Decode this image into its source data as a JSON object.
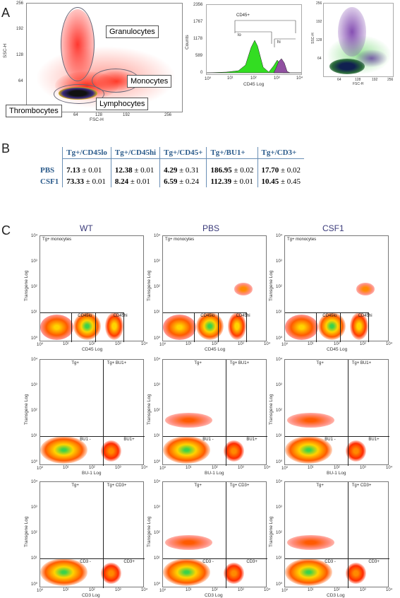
{
  "panels": {
    "a": "A",
    "b": "B",
    "c": "C"
  },
  "scatter_a": {
    "yticks": [
      "256",
      "192",
      "128",
      "64"
    ],
    "xticks": [
      "64",
      "128",
      "192",
      "256"
    ],
    "ylabel": "SSC-H",
    "xlabel": "FSC-H",
    "callouts": {
      "granulocytes": "Granulocytes",
      "monocytes": "Monocytes",
      "lymphocytes": "Lymphocytes",
      "thrombocytes": "Thrombocytes"
    }
  },
  "histogram": {
    "yticks": [
      "2356",
      "1767",
      "1178",
      "589",
      "0"
    ],
    "xticks": [
      "10⁰",
      "10¹",
      "10²",
      "10³",
      "10⁴"
    ],
    "ylabel": "Counts",
    "xlabel": "CD45 Log",
    "gate_all": "CD45+",
    "gate_lo": "lo",
    "gate_hi": "hi"
  },
  "scatter_small": {
    "yticks": [
      "256",
      "192",
      "128",
      "64"
    ],
    "xticks": [
      "64",
      "128",
      "192",
      "256"
    ],
    "ylabel": "SSC-H",
    "xlabel": "FSC-H"
  },
  "table": {
    "headers": [
      "Tg+/CD45lo",
      "Tg+/CD45hi",
      "Tg+/CD45+",
      "Tg+/BU1+",
      "Tg+/CD3+"
    ],
    "rows": [
      {
        "label": "PBS",
        "cells": [
          [
            "7.13",
            "± 0.01"
          ],
          [
            "12.38",
            "± 0.01"
          ],
          [
            "4.29",
            "± 0.31"
          ],
          [
            "186.95",
            "± 0.02"
          ],
          [
            "17.70",
            "± 0.02"
          ]
        ]
      },
      {
        "label": "CSF1",
        "cells": [
          [
            "73.33",
            "± 0.01"
          ],
          [
            "8.24",
            "± 0.01"
          ],
          [
            "6.59",
            "± 0.24"
          ],
          [
            "112.39",
            "± 0.01"
          ],
          [
            "10.45",
            "± 0.45"
          ]
        ]
      }
    ]
  },
  "grid": {
    "columns": [
      "WT",
      "PBS",
      "CSF1"
    ],
    "yticks": [
      "10⁴",
      "10³",
      "10²",
      "10¹",
      "10⁰"
    ],
    "xticks": [
      "10⁰",
      "10¹",
      "10²",
      "10³",
      "10⁴"
    ],
    "ylabel": "Transgene Log",
    "rows": [
      {
        "xlabel": "CD45 Log",
        "tl": "Tg+ monocytes",
        "tr": "",
        "bl": "",
        "bm": "CD45lo",
        "br": "CD45hi"
      },
      {
        "xlabel": "BU-1 Log",
        "tl": "Tg+",
        "tr": "Tg+ BU1+",
        "bl": "",
        "bm": "BU1 -",
        "br": "BU1+"
      },
      {
        "xlabel": "CD3 Log",
        "tl": "Tg+",
        "tr": "Tg+ CD3+",
        "bl": "",
        "bm": "CD3 -",
        "br": "CD3+"
      }
    ]
  }
}
